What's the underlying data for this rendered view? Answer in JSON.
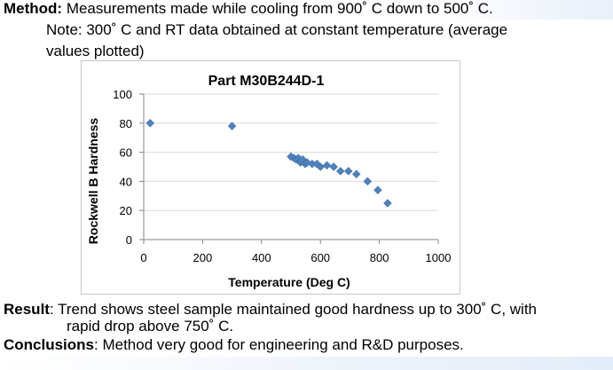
{
  "method": {
    "label": "Method:",
    "text": " Measurements made while cooling from 900˚ C down to 500˚ C.",
    "note_line1": "Note: 300˚ C and RT data obtained at constant temperature (average",
    "note_line2": "values plotted)"
  },
  "result": {
    "label": "Result",
    "text_line1": ": Trend shows steel sample maintained good hardness up to 300˚ C, with",
    "text_line2": "rapid drop above 750˚ C."
  },
  "conclusions": {
    "label": "Conclusions",
    "text": ": Method very good for engineering and R&D purposes."
  },
  "colors": {
    "marker": "#4f81bd",
    "grid": "#d9d9d9",
    "axis": "#868686"
  },
  "chart_data": {
    "type": "scatter",
    "title": "Part M30B244D-1",
    "xlabel": "Temperature (Deg C)",
    "ylabel": "Rockwell B Hardness",
    "xlim": [
      0,
      1000
    ],
    "ylim": [
      0,
      100
    ],
    "x_ticks": [
      "0",
      "200",
      "400",
      "600",
      "800",
      "1000"
    ],
    "y_ticks": [
      "0",
      "20",
      "40",
      "60",
      "80",
      "100"
    ],
    "grid": "horizontal",
    "legend": "none",
    "marker": "diamond",
    "points": [
      {
        "x": 22,
        "y": 80
      },
      {
        "x": 300,
        "y": 78
      },
      {
        "x": 500,
        "y": 57
      },
      {
        "x": 510,
        "y": 56
      },
      {
        "x": 518,
        "y": 55
      },
      {
        "x": 525,
        "y": 56
      },
      {
        "x": 532,
        "y": 53
      },
      {
        "x": 540,
        "y": 55
      },
      {
        "x": 548,
        "y": 52
      },
      {
        "x": 555,
        "y": 53
      },
      {
        "x": 572,
        "y": 52
      },
      {
        "x": 588,
        "y": 52
      },
      {
        "x": 600,
        "y": 50
      },
      {
        "x": 622,
        "y": 51
      },
      {
        "x": 645,
        "y": 50
      },
      {
        "x": 668,
        "y": 47
      },
      {
        "x": 695,
        "y": 47
      },
      {
        "x": 722,
        "y": 45
      },
      {
        "x": 760,
        "y": 40
      },
      {
        "x": 795,
        "y": 34
      },
      {
        "x": 828,
        "y": 25
      }
    ]
  }
}
